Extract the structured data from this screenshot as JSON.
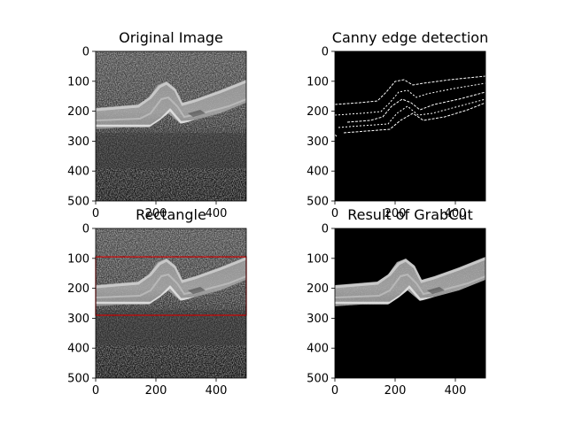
{
  "figure": {
    "background": "#ffffff",
    "image_fill": "#000000",
    "rectangle_color": "#cc0000",
    "edge_color": "#ffffff"
  },
  "chart_data": [
    {
      "type": "image",
      "title": "Original Image",
      "xlim": [
        0,
        500
      ],
      "ylim": [
        500,
        0
      ],
      "xticks": [
        "0",
        "200",
        "400"
      ],
      "yticks": [
        "0",
        "100",
        "200",
        "300",
        "400",
        "500"
      ]
    },
    {
      "type": "image",
      "title": "Canny edge detection",
      "xlim": [
        0,
        500
      ],
      "ylim": [
        500,
        0
      ],
      "xticks": [
        "0",
        "200",
        "400"
      ],
      "yticks": [
        "0",
        "100",
        "200",
        "300",
        "400",
        "500"
      ]
    },
    {
      "type": "image",
      "title": "Rectangle",
      "xlim": [
        0,
        500
      ],
      "ylim": [
        500,
        0
      ],
      "xticks": [
        "0",
        "200",
        "400"
      ],
      "yticks": [
        "0",
        "100",
        "200",
        "300",
        "400",
        "500"
      ],
      "rectangle": {
        "x": [
          0,
          500
        ],
        "y": [
          95,
          290
        ]
      }
    },
    {
      "type": "image",
      "title": "Result of GrabCut",
      "xlim": [
        0,
        500
      ],
      "ylim": [
        500,
        0
      ],
      "xticks": [
        "0",
        "200",
        "400"
      ],
      "yticks": [
        "0",
        "100",
        "200",
        "300",
        "400",
        "500"
      ]
    }
  ]
}
